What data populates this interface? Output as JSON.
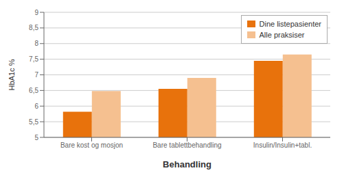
{
  "chart_data": {
    "type": "bar",
    "categories": [
      "Bare kost og mosjon",
      "Bare tablettbehandling",
      "Insulin/Insulin+tabl."
    ],
    "series": [
      {
        "name": "Dine listepasienter",
        "color": "#E8720C",
        "values": [
          5.82,
          6.55,
          7.45
        ]
      },
      {
        "name": "Alle praksiser",
        "color": "#F5C090",
        "values": [
          6.48,
          6.9,
          7.65
        ]
      }
    ],
    "ylabel": "HbA1c %",
    "xlabel": "Behandling",
    "ylim": [
      5,
      9
    ],
    "yticks": [
      5,
      {
        "value": 5.5,
        "label": "5,5"
      },
      6,
      {
        "value": 6.5,
        "label": "6,5"
      },
      7,
      {
        "value": 7.5,
        "label": "7,5"
      },
      8,
      {
        "value": 8.5,
        "label": "8,5"
      },
      9
    ],
    "grid": true,
    "legend": "upper right"
  }
}
